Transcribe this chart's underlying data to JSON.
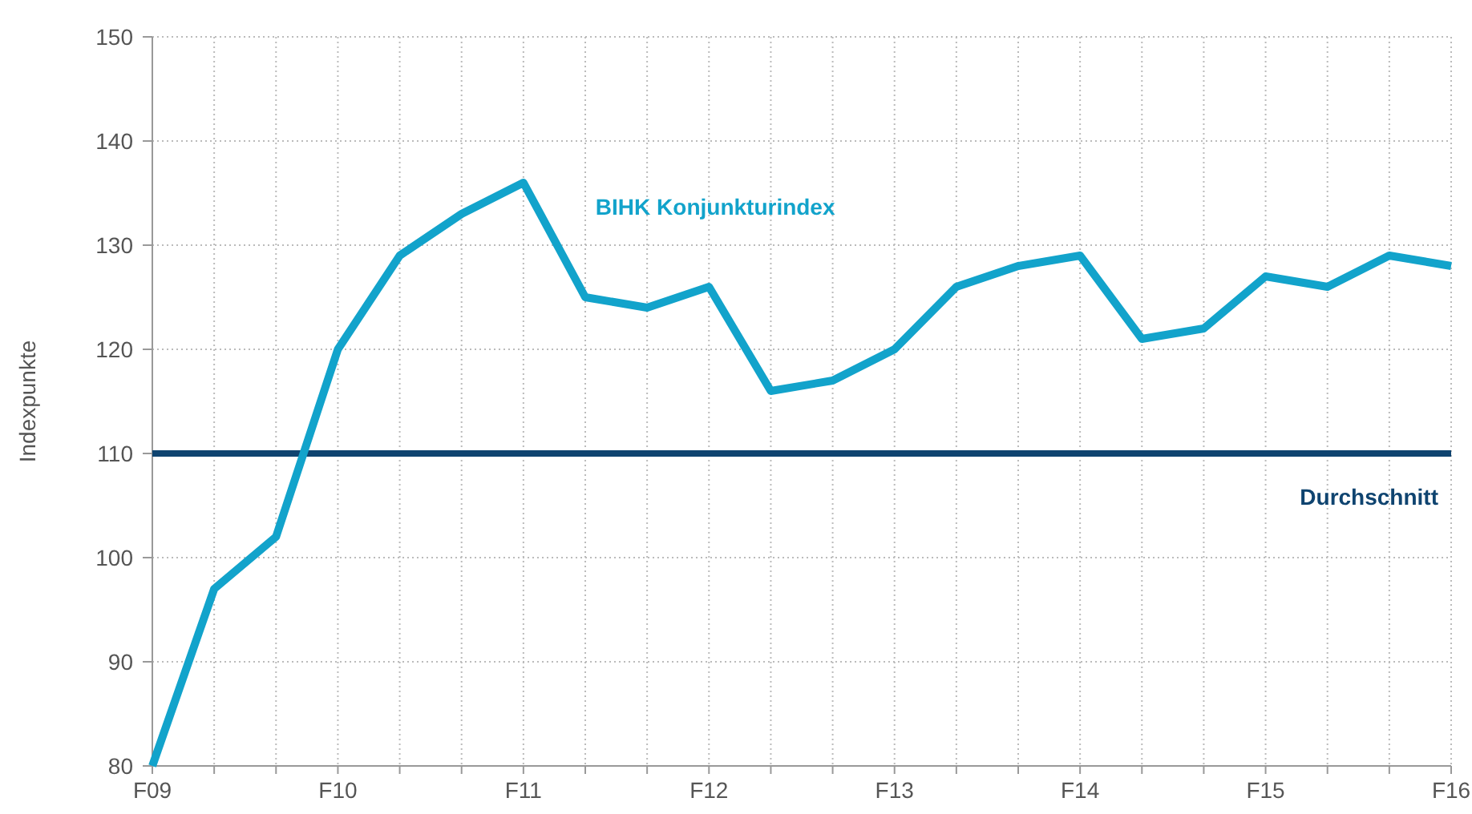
{
  "chart_data": {
    "type": "line",
    "ylabel": "Indexpunkte",
    "categories": [
      "F09",
      null,
      null,
      "F10",
      null,
      null,
      "F11",
      null,
      null,
      "F12",
      null,
      null,
      "F13",
      null,
      null,
      "F14",
      null,
      null,
      "F15",
      null,
      null,
      "F16"
    ],
    "series": [
      {
        "name": "BIHK Konjunkturindex",
        "color": "#12a3cb",
        "values": [
          80,
          97,
          102,
          120,
          129,
          133,
          136,
          125,
          124,
          126,
          116,
          117,
          120,
          126,
          128,
          129,
          121,
          122,
          127,
          126,
          129,
          128
        ]
      }
    ],
    "ylim": [
      80,
      150
    ],
    "yticks": [
      80,
      90,
      100,
      110,
      120,
      130,
      140,
      150
    ],
    "ref_lines": [
      {
        "axis": "y",
        "value": 110,
        "label": "Durchschnitt",
        "color": "#0f4470"
      }
    ],
    "grid": true,
    "marker": "none",
    "line_style": "solid"
  }
}
